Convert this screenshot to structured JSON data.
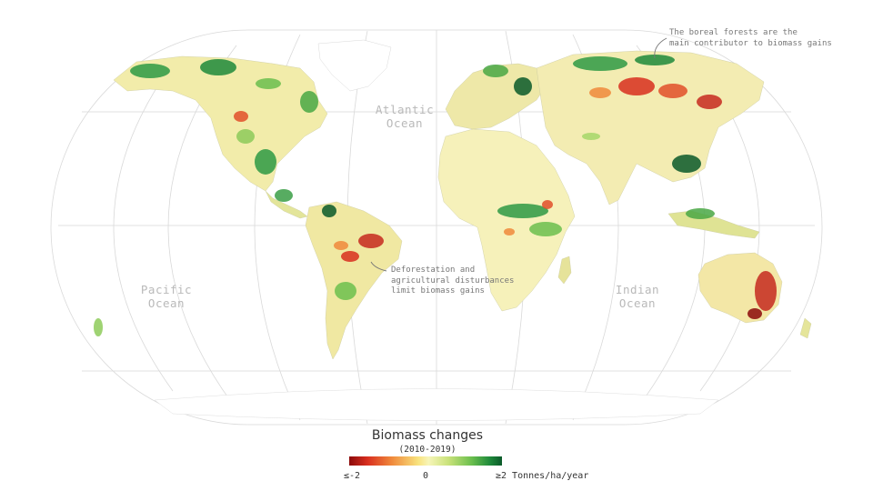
{
  "map": {
    "oceans": [
      {
        "id": "atlantic",
        "line1": "Atlantic",
        "line2": "Ocean"
      },
      {
        "id": "pacific",
        "line1": "Pacific",
        "line2": "Ocean"
      },
      {
        "id": "indian",
        "line1": "Indian",
        "line2": "Ocean"
      }
    ],
    "annotations": {
      "boreal": [
        "The boreal forests are the",
        "main contributor to biomass gains"
      ],
      "deforestation": [
        "Deforestation and",
        "agricultural disturbances",
        "limit biomass gains"
      ]
    }
  },
  "legend": {
    "title": "Biomass changes",
    "period": "(2010-2019)",
    "min_label": "≤-2",
    "mid_label": "0",
    "max_label": "≥2 Tonnes/ha/year",
    "colors": {
      "loss": "#8c0a0a",
      "neutral": "#f7f5b8",
      "gain": "#0b5a2a"
    }
  }
}
